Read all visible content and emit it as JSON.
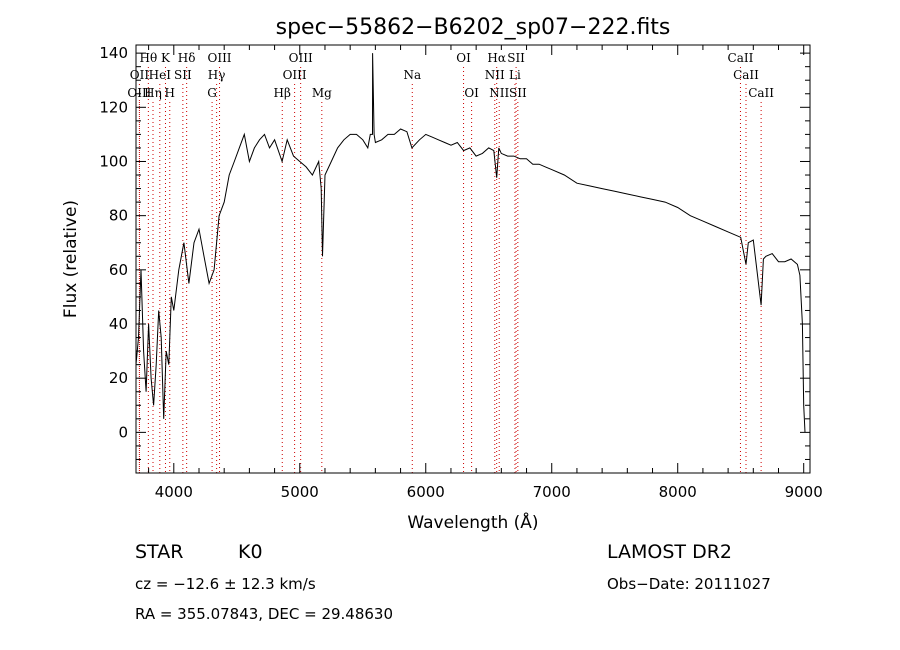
{
  "chart_data": {
    "type": "line",
    "title": "spec−55862−B6202_sp07−222.fits",
    "xlabel": "Wavelength (Å)",
    "ylabel": "Flux (relative)",
    "xlim": [
      3700,
      9050
    ],
    "ylim": [
      -15,
      143
    ],
    "x_ticks": [
      4000,
      5000,
      6000,
      7000,
      8000,
      9000
    ],
    "y_ticks": [
      0,
      20,
      40,
      60,
      80,
      100,
      120,
      140
    ],
    "grid": false,
    "legend": "none",
    "line_color": "#000000",
    "marker_line_color": "#cc0000",
    "spectrum": {
      "x": [
        3700,
        3720,
        3740,
        3760,
        3780,
        3800,
        3820,
        3840,
        3860,
        3880,
        3900,
        3920,
        3940,
        3960,
        3980,
        4000,
        4040,
        4080,
        4120,
        4160,
        4200,
        4240,
        4280,
        4320,
        4340,
        4360,
        4400,
        4440,
        4480,
        4520,
        4560,
        4600,
        4640,
        4680,
        4720,
        4760,
        4800,
        4860,
        4900,
        4950,
        5000,
        5050,
        5100,
        5150,
        5170,
        5180,
        5200,
        5250,
        5300,
        5350,
        5400,
        5450,
        5500,
        5540,
        5560,
        5577,
        5578,
        5590,
        5600,
        5650,
        5700,
        5750,
        5800,
        5850,
        5890,
        5950,
        6000,
        6050,
        6100,
        6150,
        6200,
        6250,
        6300,
        6350,
        6400,
        6450,
        6500,
        6540,
        6563,
        6580,
        6600,
        6650,
        6700,
        6750,
        6800,
        6850,
        6900,
        6950,
        7000,
        7100,
        7200,
        7300,
        7400,
        7500,
        7600,
        7700,
        7800,
        7900,
        8000,
        8100,
        8200,
        8300,
        8400,
        8500,
        8542,
        8560,
        8600,
        8662,
        8680,
        8700,
        8750,
        8800,
        8850,
        8900,
        8950,
        8970,
        8990,
        9000,
        9010
      ],
      "y": [
        25,
        35,
        60,
        30,
        15,
        40,
        20,
        10,
        25,
        45,
        35,
        5,
        30,
        25,
        50,
        45,
        60,
        70,
        55,
        70,
        75,
        65,
        55,
        60,
        70,
        80,
        85,
        95,
        100,
        105,
        110,
        100,
        105,
        108,
        110,
        105,
        108,
        100,
        108,
        102,
        100,
        98,
        95,
        100,
        90,
        65,
        95,
        100,
        105,
        108,
        110,
        110,
        108,
        105,
        110,
        110,
        140,
        110,
        107,
        108,
        110,
        110,
        112,
        111,
        105,
        108,
        110,
        109,
        108,
        107,
        106,
        107,
        104,
        105,
        102,
        103,
        105,
        104,
        94,
        105,
        103,
        102,
        102,
        101,
        101,
        99,
        99,
        98,
        97,
        95,
        92,
        91,
        90,
        89,
        88,
        87,
        86,
        85,
        83,
        80,
        78,
        76,
        74,
        72,
        62,
        70,
        71,
        47,
        64,
        65,
        66,
        63,
        63,
        64,
        62,
        58,
        40,
        10,
        0
      ]
    },
    "spectral_lines": [
      {
        "label": "Hθ",
        "x": 3798,
        "row": 1
      },
      {
        "label": "K",
        "x": 3934,
        "row": 1
      },
      {
        "label": "Hδ",
        "x": 4102,
        "row": 1
      },
      {
        "label": "OIII",
        "x": 4363,
        "row": 1
      },
      {
        "label": "OIII",
        "x": 5007,
        "row": 1
      },
      {
        "label": "OI",
        "x": 6300,
        "row": 1
      },
      {
        "label": "Hα",
        "x": 6563,
        "row": 1
      },
      {
        "label": "SII",
        "x": 6717,
        "row": 1
      },
      {
        "label": "CaII",
        "x": 8498,
        "row": 1
      },
      {
        "label": "OII",
        "x": 3727,
        "row": 2
      },
      {
        "label": "HeI",
        "x": 3889,
        "row": 2
      },
      {
        "label": "SII",
        "x": 4072,
        "row": 2
      },
      {
        "label": "Hγ",
        "x": 4340,
        "row": 2
      },
      {
        "label": "OIII",
        "x": 4959,
        "row": 2
      },
      {
        "label": "Na",
        "x": 5893,
        "row": 2
      },
      {
        "label": "NII",
        "x": 6548,
        "row": 2
      },
      {
        "label": "Li",
        "x": 6708,
        "row": 2
      },
      {
        "label": "CaII",
        "x": 8542,
        "row": 2
      },
      {
        "label": "OIII",
        "x": 3727,
        "row": 3
      },
      {
        "label": "Hη",
        "x": 3835,
        "row": 3
      },
      {
        "label": "H",
        "x": 3968,
        "row": 3
      },
      {
        "label": "G",
        "x": 4304,
        "row": 3
      },
      {
        "label": "Hβ",
        "x": 4861,
        "row": 3
      },
      {
        "label": "Mg",
        "x": 5175,
        "row": 3
      },
      {
        "label": "OI",
        "x": 6364,
        "row": 3
      },
      {
        "label": "NII",
        "x": 6583,
        "row": 3
      },
      {
        "label": "SII",
        "x": 6731,
        "row": 3
      },
      {
        "label": "CaII",
        "x": 8662,
        "row": 3
      }
    ]
  },
  "info": {
    "object_class": "STAR",
    "subclass": "K0",
    "survey": "LAMOST DR2",
    "redshift_text": "cz = −12.6 ± 12.3 km/s",
    "obs_date_text": "Obs−Date: 20111027",
    "coords_text": "RA = 355.07843, DEC =  29.48630"
  }
}
